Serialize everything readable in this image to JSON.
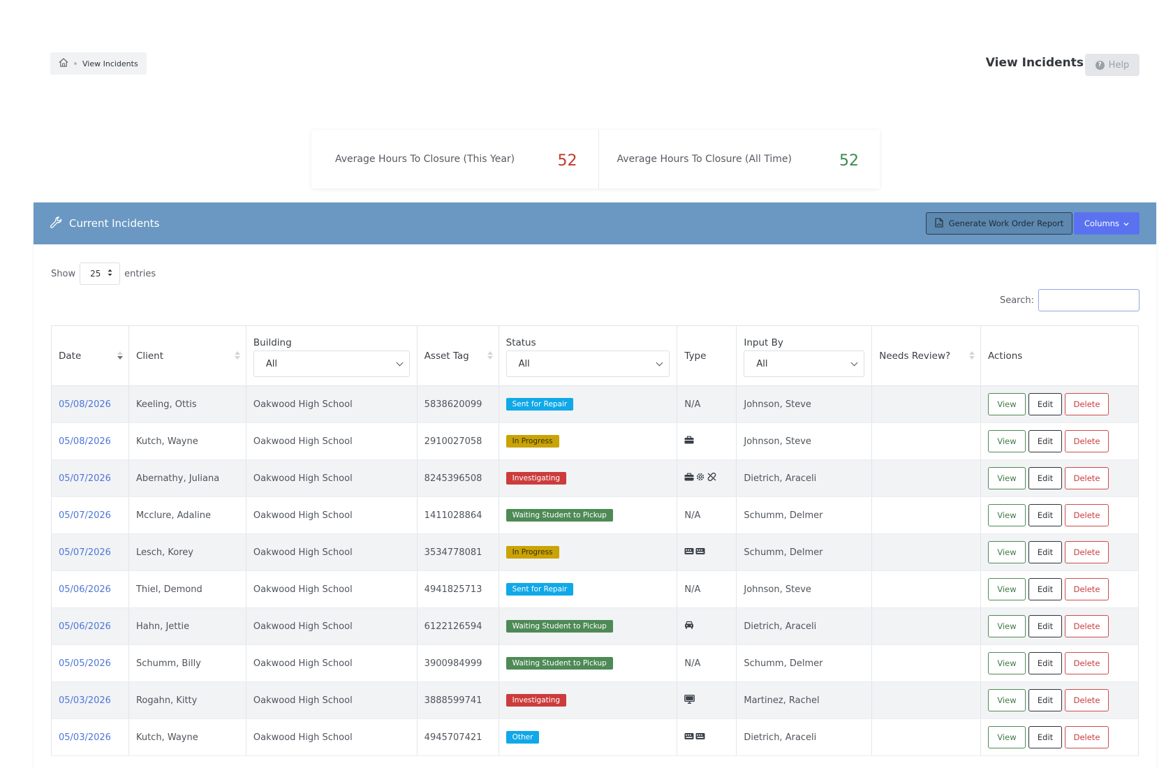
{
  "breadcrumb": {
    "current": "View Incidents"
  },
  "header": {
    "title": "View Incidents",
    "help_label": "Help"
  },
  "stats": [
    {
      "label": "Average Hours To Closure (This Year)",
      "value": "52",
      "color": "#c0392b"
    },
    {
      "label": "Average Hours To Closure (All Time)",
      "value": "52",
      "color": "#3e8a4c"
    }
  ],
  "card": {
    "title": "Current Incidents",
    "generate_label": "Generate Work Order Report",
    "columns_label": "Columns",
    "show_label": "Show",
    "entries_value": "25",
    "entries_label": "entries",
    "search_label": "Search:"
  },
  "table": {
    "headers": {
      "date": "Date",
      "client": "Client",
      "building": "Building",
      "building_filter": "All",
      "asset": "Asset Tag",
      "status": "Status",
      "status_filter": "All",
      "type": "Type",
      "input_by": "Input By",
      "input_filter": "All",
      "needs_review": "Needs Review?",
      "actions": "Actions"
    },
    "actions": {
      "view": "View",
      "edit": "Edit",
      "delete": "Delete"
    },
    "rows": [
      {
        "date": "05/08/2026",
        "client": "Keeling, Ottis",
        "building": "Oakwood High School",
        "asset": "5838620099",
        "status": "Sent for Repair",
        "status_kind": "sent",
        "type": "N/A",
        "type_icons": [],
        "input_by": "Johnson, Steve"
      },
      {
        "date": "05/08/2026",
        "client": "Kutch, Wayne",
        "building": "Oakwood High School",
        "asset": "2910027058",
        "status": "In Progress",
        "status_kind": "prog",
        "type": "",
        "type_icons": [
          "briefcase-icon"
        ],
        "input_by": "Johnson, Steve"
      },
      {
        "date": "05/07/2026",
        "client": "Abernathy, Juliana",
        "building": "Oakwood High School",
        "asset": "8245396508",
        "status": "Investigating",
        "status_kind": "inv",
        "type": "",
        "type_icons": [
          "briefcase-icon",
          "gear-icon",
          "broken-link-icon"
        ],
        "input_by": "Dietrich, Araceli"
      },
      {
        "date": "05/07/2026",
        "client": "Mcclure, Adaline",
        "building": "Oakwood High School",
        "asset": "1411028864",
        "status": "Waiting Student to Pickup",
        "status_kind": "wait",
        "type": "N/A",
        "type_icons": [],
        "input_by": "Schumm, Delmer"
      },
      {
        "date": "05/07/2026",
        "client": "Lesch, Korey",
        "building": "Oakwood High School",
        "asset": "3534778081",
        "status": "In Progress",
        "status_kind": "prog",
        "type": "",
        "type_icons": [
          "keyboard-icon",
          "keyboard-icon"
        ],
        "input_by": "Schumm, Delmer"
      },
      {
        "date": "05/06/2026",
        "client": "Thiel, Demond",
        "building": "Oakwood High School",
        "asset": "4941825713",
        "status": "Sent for Repair",
        "status_kind": "sent",
        "type": "N/A",
        "type_icons": [],
        "input_by": "Johnson, Steve"
      },
      {
        "date": "05/06/2026",
        "client": "Hahn, Jettie",
        "building": "Oakwood High School",
        "asset": "6122126594",
        "status": "Waiting Student to Pickup",
        "status_kind": "wait",
        "type": "",
        "type_icons": [
          "car-icon"
        ],
        "input_by": "Dietrich, Araceli"
      },
      {
        "date": "05/05/2026",
        "client": "Schumm, Billy",
        "building": "Oakwood High School",
        "asset": "3900984999",
        "status": "Waiting Student to Pickup",
        "status_kind": "wait",
        "type": "N/A",
        "type_icons": [],
        "input_by": "Schumm, Delmer"
      },
      {
        "date": "05/03/2026",
        "client": "Rogahn, Kitty",
        "building": "Oakwood High School",
        "asset": "3888599741",
        "status": "Investigating",
        "status_kind": "inv",
        "type": "",
        "type_icons": [
          "monitor-icon"
        ],
        "input_by": "Martinez, Rachel"
      },
      {
        "date": "05/03/2026",
        "client": "Kutch, Wayne",
        "building": "Oakwood High School",
        "asset": "4945707421",
        "status": "Other",
        "status_kind": "other",
        "type": "",
        "type_icons": [
          "keyboard-icon",
          "keyboard-icon"
        ],
        "input_by": "Dietrich, Araceli"
      }
    ]
  }
}
